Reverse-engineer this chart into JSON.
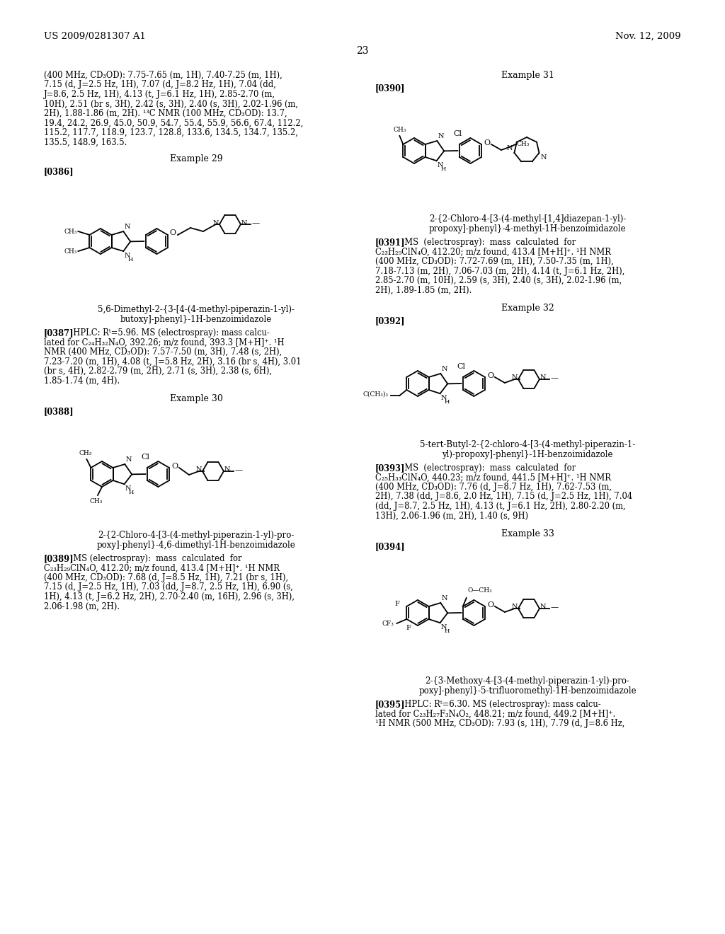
{
  "page_header_left": "US 2009/0281307 A1",
  "page_header_right": "Nov. 12, 2009",
  "page_number": "23",
  "background_color": "#ffffff",
  "left_col_text_block1_lines": [
    "(400 MHz, CD₃OD): 7.75-7.65 (m, 1H), 7.40-7.25 (m, 1H),",
    "7.15 (d, J=2.5 Hz, 1H), 7.07 (d, J=8.2 Hz, 1H), 7.04 (dd,",
    "J=8.6, 2.5 Hz, 1H), 4.13 (t, J=6.1 Hz, 1H), 2.85-2.70 (m,",
    "10H), 2.51 (br s, 3H), 2.42 (s, 3H), 2.40 (s, 3H), 2.02-1.96 (m,",
    "2H), 1.88-1.86 (m, 2H). ¹³C NMR (100 MHz, CD₃OD): 13.7,",
    "19.4, 24.2, 26.9, 45.0, 50.9, 54.7, 55.4, 55.9, 56.6, 67.4, 112.2,",
    "115.2, 117.7, 118.9, 123.7, 128.8, 133.6, 134.5, 134.7, 135.2,",
    "135.5, 148.9, 163.5."
  ],
  "example29_label": "Example 29",
  "ref386": "[0386]",
  "compound386_name_lines": [
    "5,6-Dimethyl-2-{3-[4-(4-methyl-piperazin-1-yl)-",
    "butoxy]-phenyl}-1H-benzoimidazole"
  ],
  "ref387": "[0387]",
  "text387_lines": [
    "[0387]  HPLC: Rᵗ=5.96. MS (electrospray): mass calcu-",
    "lated for C₂₄H₃₂N₄O, 392.26; m/z found, 393.3 [M+H]⁺. ¹H",
    "NMR (400 MHz, CD₃OD): 7.57-7.50 (m, 3H), 7.48 (s, 2H),",
    "7.23-7.20 (m, 1H), 4.08 (t, J=5.8 Hz, 2H), 3.16 (br s, 4H), 3.01",
    "(br s, 4H), 2.82-2.79 (m, 2H), 2.71 (s, 3H), 2.38 (s, 6H),",
    "1.85-1.74 (m, 4H)."
  ],
  "example30_label": "Example 30",
  "ref388": "[0388]",
  "compound388_name_lines": [
    "2-{2-Chloro-4-[3-(4-methyl-piperazin-1-yl)-pro-",
    "poxy]-phenyl}-4,6-dimethyl-1H-benzoimidazole"
  ],
  "text389_lines": [
    "[0389]  MS (electrospray):  mass  calculated  for",
    "C₂₃H₂₉ClN₄O, 412.20; m/z found, 413.4 [M+H]⁺. ¹H NMR",
    "(400 MHz, CD₃OD): 7.68 (d, J=8.5 Hz, 1H), 7.21 (br s, 1H),",
    "7.15 (d, J=2.5 Hz, 1H), 7.03 (dd, J=8.7, 2.5 Hz, 1H), 6.90 (s,",
    "1H), 4.13 (t, J=6.2 Hz, 2H), 2.70-2.40 (m, 16H), 2.96 (s, 3H),",
    "2.06-1.98 (m, 2H)."
  ],
  "example31_label": "Example 31",
  "ref390": "[0390]",
  "compound390_name_lines": [
    "2-{2-Chloro-4-[3-(4-methyl-[1,4]diazepan-1-yl)-",
    "propoxy]-phenyl}-4-methyl-1H-benzoimidazole"
  ],
  "text391_lines": [
    "[0391]  MS  (electrospray):  mass  calculated  for",
    "C₂₃H₂₉ClN₄O, 412.20; m/z found, 413.4 [M+H]⁺. ¹H NMR",
    "(400 MHz, CD₃OD): 7.72-7.69 (m, 1H), 7.50-7.35 (m, 1H),",
    "7.18-7.13 (m, 2H), 7.06-7.03 (m, 2H), 4.14 (t, J=6.1 Hz, 2H),",
    "2.85-2.70 (m, 10H), 2.59 (s, 3H), 2.40 (s, 3H), 2.02-1.96 (m,",
    "2H), 1.89-1.85 (m, 2H)."
  ],
  "example32_label": "Example 32",
  "ref392": "[0392]",
  "compound392_name_lines": [
    "5-tert-Butyl-2-{2-chloro-4-[3-(4-methyl-piperazin-1-",
    "yl)-propoxy]-phenyl}-1H-benzoimidazole"
  ],
  "text393_lines": [
    "[0393]  MS  (electrospray):  mass  calculated  for",
    "C₂₅H₃₃ClN₄O, 440.23; m/z found, 441.5 [M+H]⁺. ¹H NMR",
    "(400 MHz, CD₃OD): 7.76 (d, J=8.7 Hz, 1H), 7.62-7.53 (m,",
    "2H), 7.38 (dd, J=8.6, 2.0 Hz, 1H), 7.15 (d, J=2.5 Hz, 1H), 7.04",
    "(dd, J=8.7, 2.5 Hz, 1H), 4.13 (t, J=6.1 Hz, 2H), 2.80-2.20 (m,",
    "13H), 2.06-1.96 (m, 2H), 1.40 (s, 9H)"
  ],
  "example33_label": "Example 33",
  "ref394": "[0394]",
  "compound394_name_lines": [
    "2-{3-Methoxy-4-[3-(4-methyl-piperazin-1-yl)-pro-",
    "poxy]-phenyl}-5-trifluoromethyl-1H-benzoimidazole"
  ],
  "text395_lines": [
    "[0395]  HPLC: Rᵗ=6.30. MS (electrospray): mass calcu-",
    "lated for C₂₃H₂₇F₃N₄O₂, 448.21; m/z found, 449.2 [M+H]⁺.",
    "¹H NMR (500 MHz, CD₃OD): 7.93 (s, 1H), 7.79 (d, J=8.6 Hz,"
  ]
}
